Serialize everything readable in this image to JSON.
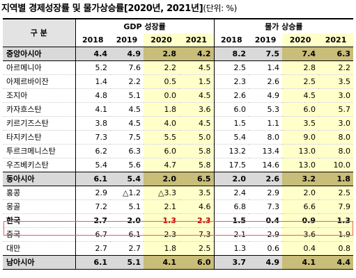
{
  "title": "지역별 경제성장률 및 물가상승률[2020년, 2021년]",
  "unit": "(단위: %)",
  "header": {
    "division": "구 분",
    "gdp_group": "GDP 성장률",
    "price_group": "물가 상승률",
    "years": [
      "2018",
      "2019",
      "2020",
      "2021"
    ]
  },
  "rows": [
    {
      "name": "중앙아시아",
      "type": "region",
      "gdp": [
        "4.4",
        "4.9",
        "2.8",
        "4.2"
      ],
      "cpi": [
        "8.2",
        "7.5",
        "7.4",
        "6.3"
      ]
    },
    {
      "name": "아르메니아",
      "type": "row",
      "gdp": [
        "5.2",
        "7.6",
        "2.2",
        "4.5"
      ],
      "cpi": [
        "2.5",
        "1.4",
        "2.8",
        "2.2"
      ]
    },
    {
      "name": "아제르바이잔",
      "type": "row",
      "gdp": [
        "1.4",
        "2.2",
        "0.5",
        "1.5"
      ],
      "cpi": [
        "2.3",
        "2.6",
        "2.5",
        "3.5"
      ]
    },
    {
      "name": "조지아",
      "type": "row",
      "gdp": [
        "4.8",
        "5.1",
        "0.0",
        "4.5"
      ],
      "cpi": [
        "2.6",
        "4.9",
        "4.5",
        "3.0"
      ]
    },
    {
      "name": "카자흐스탄",
      "type": "row",
      "gdp": [
        "4.1",
        "4.5",
        "1.8",
        "3.6"
      ],
      "cpi": [
        "6.0",
        "5.3",
        "6.0",
        "5.7"
      ]
    },
    {
      "name": "키르기즈스탄",
      "type": "row",
      "gdp": [
        "3.8",
        "4.5",
        "4.0",
        "4.5"
      ],
      "cpi": [
        "1.5",
        "1.1",
        "3.5",
        "3.0"
      ]
    },
    {
      "name": "타지키스탄",
      "type": "row",
      "gdp": [
        "7.3",
        "7.5",
        "5.5",
        "5.0"
      ],
      "cpi": [
        "5.4",
        "8.0",
        "9.0",
        "8.0"
      ]
    },
    {
      "name": "투르크메니스탄",
      "type": "row",
      "gdp": [
        "6.2",
        "6.3",
        "6.0",
        "5.8"
      ],
      "cpi": [
        "13.2",
        "13.4",
        "13.0",
        "8.0"
      ]
    },
    {
      "name": "우즈베키스탄",
      "type": "row",
      "gdp": [
        "5.4",
        "5.6",
        "4.7",
        "5.8"
      ],
      "cpi": [
        "17.5",
        "14.6",
        "13.0",
        "10.0"
      ]
    },
    {
      "name": "동아시아",
      "type": "region",
      "gdp": [
        "6.1",
        "5.4",
        "2.0",
        "6.5"
      ],
      "cpi": [
        "2.0",
        "2.6",
        "3.2",
        "1.8"
      ]
    },
    {
      "name": "홍콩",
      "type": "row",
      "gdp": [
        "2.9",
        "△1.2",
        "△3.3",
        "3.5"
      ],
      "cpi": [
        "2.4",
        "2.9",
        "2.0",
        "2.5"
      ]
    },
    {
      "name": "몽골",
      "type": "row",
      "gdp": [
        "7.2",
        "5.1",
        "2.1",
        "4.6"
      ],
      "cpi": [
        "6.8",
        "7.3",
        "6.6",
        "7.9"
      ]
    },
    {
      "name": "한국",
      "type": "korea",
      "gdp": [
        "2.7",
        "2.0",
        "1.3",
        "2.3"
      ],
      "cpi": [
        "1.5",
        "0.4",
        "0.9",
        "1.3"
      ]
    },
    {
      "name": "중국",
      "type": "row",
      "gdp": [
        "6.7",
        "6.1",
        "2.3",
        "7.3"
      ],
      "cpi": [
        "2.1",
        "2.9",
        "3.6",
        "1.9"
      ]
    },
    {
      "name": "대만",
      "type": "row",
      "gdp": [
        "2.7",
        "2.7",
        "1.8",
        "2.5"
      ],
      "cpi": [
        "1.3",
        "0.6",
        "0.4",
        "0.8"
      ]
    },
    {
      "name": "남아시아",
      "type": "region",
      "gdp": [
        "6.1",
        "5.1",
        "4.1",
        "6.0"
      ],
      "cpi": [
        "3.7",
        "4.9",
        "4.1",
        "4.4"
      ]
    }
  ],
  "colors": {
    "highlight_yellow": "#ffffc9",
    "region_gray": "#d9d9d9",
    "region_gold": "#c8bd79",
    "korea_red": "#c00000",
    "korea_box": "#e06060"
  }
}
